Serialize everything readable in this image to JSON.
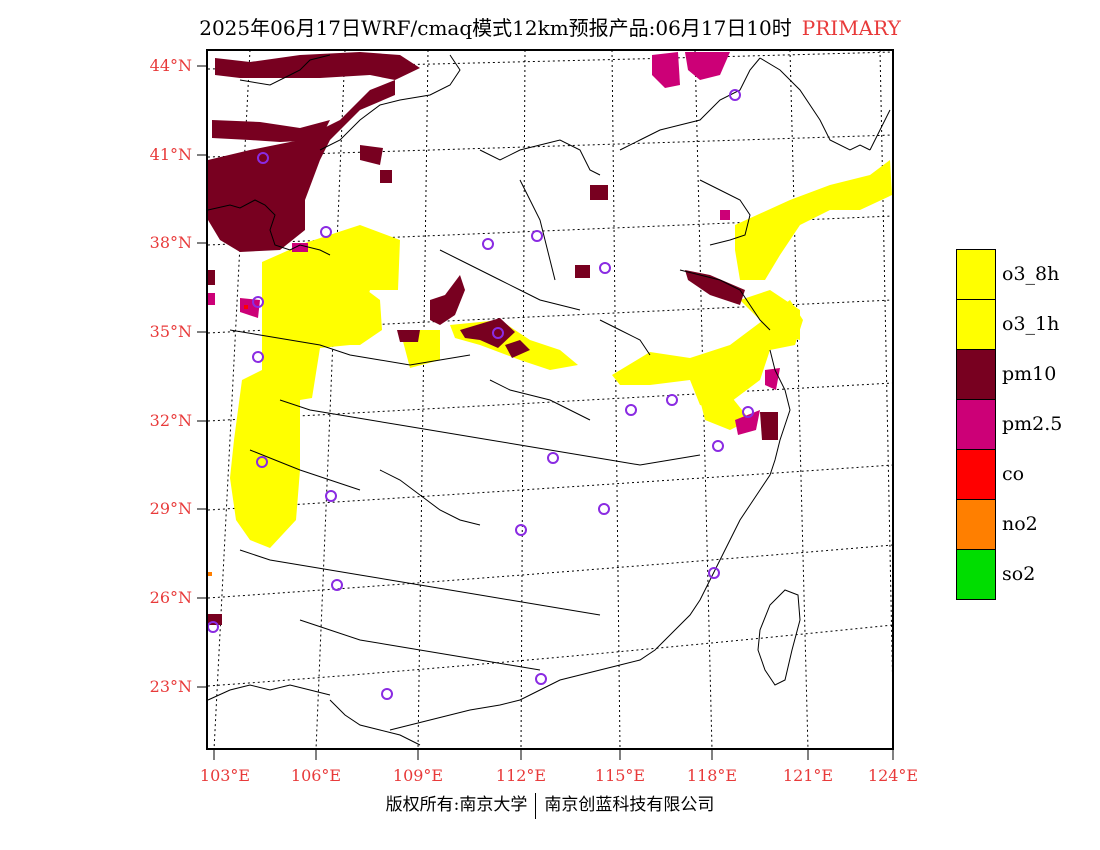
{
  "header": {
    "title": "2025年06月17日WRF/cmaq模式12km预报产品:06月17日10时",
    "tag": "PRIMARY"
  },
  "map": {
    "lat_labels": [
      "44°N",
      "41°N",
      "38°N",
      "35°N",
      "32°N",
      "29°N",
      "26°N",
      "23°N"
    ],
    "lon_labels": [
      "103°E",
      "106°E",
      "109°E",
      "112°E",
      "115°E",
      "118°E",
      "121°E",
      "124°E"
    ]
  },
  "legend": {
    "items": [
      {
        "label": "o3_8h",
        "color": "#ffff00"
      },
      {
        "label": "o3_1h",
        "color": "#ffff00"
      },
      {
        "label": "pm10",
        "color": "#780020"
      },
      {
        "label": "pm2.5",
        "color": "#cc0077"
      },
      {
        "label": "co",
        "color": "#ff0000"
      },
      {
        "label": "no2",
        "color": "#ff7f00"
      },
      {
        "label": "so2",
        "color": "#00dd00"
      }
    ]
  },
  "footer": {
    "copyright_left": "版权所有:南京大学",
    "copyright_right": "南京创蓝科技有限公司"
  }
}
